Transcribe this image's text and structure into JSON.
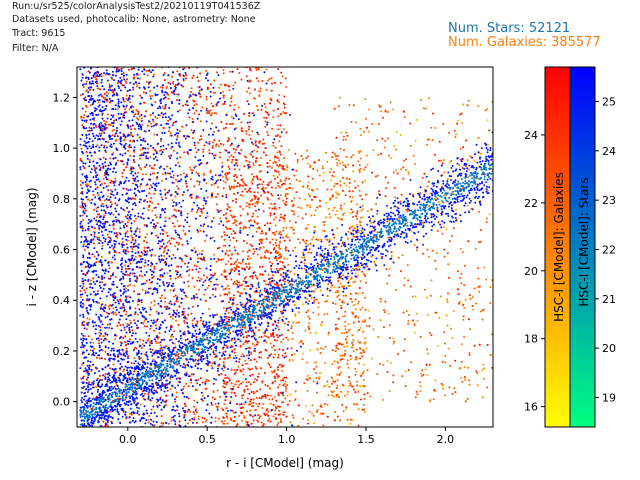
{
  "header": {
    "lines": [
      "Run:u/sr525/colorAnalysisTest2/20210119T041536Z",
      "Datasets used, photocalib: None, astrometry: None",
      "Tract: 9615",
      "Filter: N/A"
    ],
    "stars_label": "Num. Stars: 52121",
    "galaxies_label": "Num. Galaxies: 385577"
  },
  "colors": {
    "stars": "#1f77b4",
    "galaxies": "#ff7f0e"
  },
  "chart_data": {
    "type": "scatter",
    "xlabel": "r - i [CModel] (mag)",
    "ylabel": "i - z [CModel] (mag)",
    "xlim": [
      -0.32,
      2.3
    ],
    "ylim": [
      -0.1,
      1.32
    ],
    "xticks": [
      0.0,
      0.5,
      1.0,
      1.5,
      2.0
    ],
    "xtick_labels": [
      "0.0",
      "0.5",
      "1.0",
      "1.5",
      "2.0"
    ],
    "yticks": [
      0.0,
      0.2,
      0.4,
      0.6,
      0.8,
      1.0,
      1.2
    ],
    "ytick_labels": [
      "0.0",
      "0.2",
      "0.4",
      "0.6",
      "0.8",
      "1.0",
      "1.2"
    ],
    "grid": false,
    "series": [
      {
        "name": "Galaxies",
        "count": 385577,
        "colormap": "autumn",
        "description": "broad cloud spanning full range, concentrated at r-i < 1.6"
      },
      {
        "name": "Stars",
        "count": 52121,
        "colormap": "winter",
        "stellar_locus": [
          [
            -0.3,
            -0.08
          ],
          [
            0.0,
            0.05
          ],
          [
            0.5,
            0.22
          ],
          [
            1.0,
            0.42
          ],
          [
            1.5,
            0.62
          ],
          [
            2.0,
            0.82
          ],
          [
            2.3,
            0.93
          ]
        ]
      }
    ],
    "colorbars": [
      {
        "label": "HSC-I [CModel]: Galaxies",
        "colormap": "autumn",
        "range": [
          15.4,
          26.0
        ],
        "ticks": [
          16,
          18,
          20,
          22,
          24
        ],
        "tick_labels": [
          "16",
          "18",
          "20",
          "22",
          "24"
        ]
      },
      {
        "label": "HSC-I [CModel]: Stars",
        "colormap": "winter",
        "range": [
          18.4,
          25.7
        ],
        "ticks": [
          19,
          20,
          21,
          22,
          23,
          24,
          25
        ],
        "tick_labels": [
          "19",
          "20",
          "21",
          "22",
          "23",
          "24",
          "25"
        ]
      }
    ]
  }
}
